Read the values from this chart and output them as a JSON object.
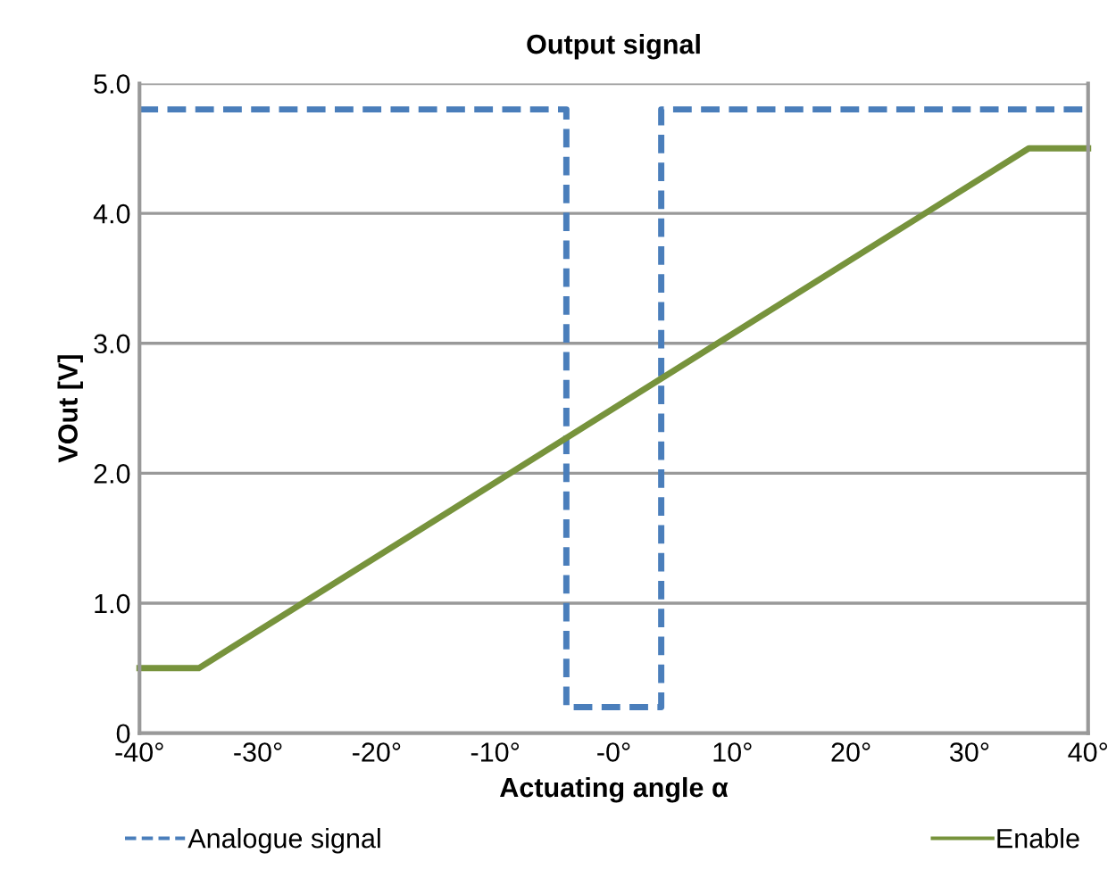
{
  "chart_data": {
    "type": "line",
    "title": "Output signal",
    "xlabel": "Actuating angle α",
    "ylabel": "VOut [V]",
    "xlim": [
      -40,
      40
    ],
    "xticks": [
      {
        "value": -40,
        "label": "-40°"
      },
      {
        "value": -30,
        "label": "-30°"
      },
      {
        "value": -20,
        "label": "-20°"
      },
      {
        "value": -10,
        "label": "-10°"
      },
      {
        "value": 0,
        "label": "-0°"
      },
      {
        "value": 10,
        "label": "10°"
      },
      {
        "value": 20,
        "label": "20°"
      },
      {
        "value": 30,
        "label": "30°"
      },
      {
        "value": 40,
        "label": "40°"
      }
    ],
    "ylim": [
      0,
      5
    ],
    "yticks": [
      0,
      {
        "value": 1,
        "label": "1.0"
      },
      {
        "value": 2,
        "label": "2.0"
      },
      {
        "value": 3,
        "label": "3.0"
      },
      {
        "value": 4,
        "label": "4.0"
      },
      {
        "value": 5,
        "label": "5.0"
      }
    ],
    "grid": "y",
    "legend": "bottom",
    "marker": "none",
    "series": [
      {
        "name": "Analogue signal",
        "color": "#4a7ebb",
        "line_style": "dashed",
        "x": [
          -40,
          -4,
          -4,
          4,
          4,
          40
        ],
        "values": [
          4.8,
          4.8,
          0.2,
          0.2,
          4.8,
          4.8
        ]
      },
      {
        "name": "Enable",
        "color": "#77933c",
        "line_style": "solid",
        "x": [
          -40,
          -35,
          35,
          40
        ],
        "values": [
          0.5,
          0.5,
          4.5,
          4.5
        ]
      }
    ]
  }
}
